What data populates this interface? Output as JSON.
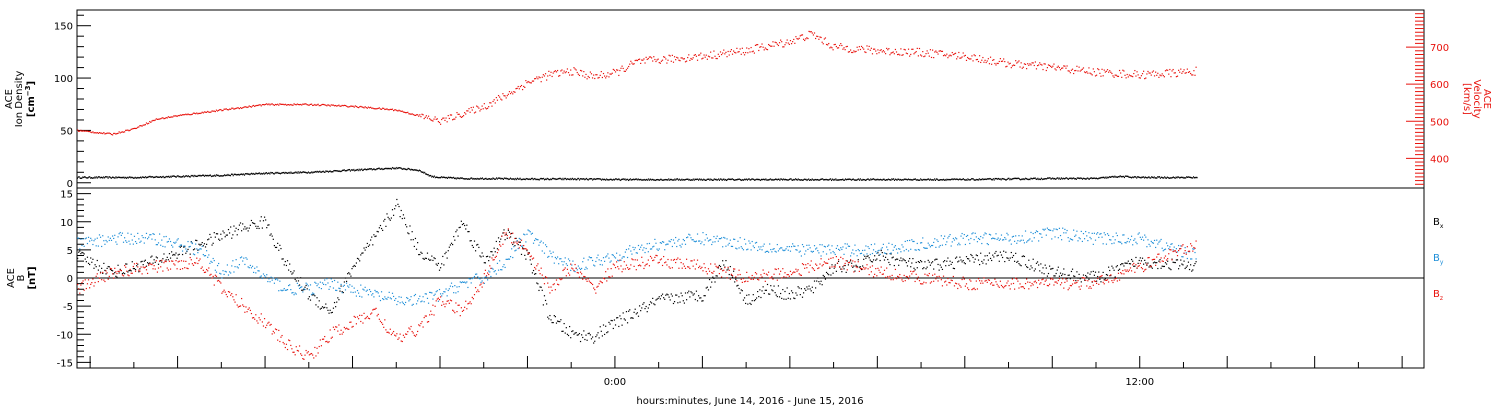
{
  "chart_data": [
    {
      "type": "scatter",
      "panel": "top",
      "ylabel_lines": [
        "ACE",
        "Ion Density"
      ],
      "yunit_left": "[cm",
      "yunit_left_sup": "−3",
      "yunit_left_close": "]",
      "y2label_lines": [
        "ACE",
        "Velocity"
      ],
      "y2unit": "[km/s]",
      "ylim": [
        -5,
        165
      ],
      "yticks": [
        0,
        50,
        100,
        150
      ],
      "y2lim": [
        320,
        800
      ],
      "y2ticks": [
        400,
        500,
        600,
        700
      ],
      "y2ticklabels": [
        "400",
        "500",
        "600",
        "700"
      ],
      "x_hours_range": [
        -12.3,
        18.5
      ],
      "series": [
        {
          "color": "#000000",
          "axis": "left",
          "hours": [
            -12.3,
            -11,
            -10,
            -9,
            -8,
            -7,
            -6,
            -5,
            -4.5,
            -4.2,
            -4,
            -3.5,
            -3,
            -2,
            -1,
            0,
            1,
            2,
            3,
            4,
            5,
            6,
            7,
            8,
            9,
            10,
            11,
            11.5,
            12,
            13.3
          ],
          "values": [
            5,
            5,
            6,
            7,
            9,
            10,
            12,
            14,
            12,
            6,
            5,
            4,
            4,
            3.5,
            3.5,
            3,
            3,
            3,
            3,
            3,
            3,
            3,
            3,
            3,
            3.5,
            4,
            4,
            6,
            5,
            5
          ]
        },
        {
          "color": "#e8120c",
          "axis": "right",
          "hours": [
            -12.3,
            -11.5,
            -11,
            -10.5,
            -10,
            -9,
            -8,
            -7,
            -6,
            -5,
            -4,
            -3.5,
            -3,
            -2.5,
            -2,
            -1.5,
            -1,
            -0.5,
            0,
            0.5,
            1,
            2,
            3,
            4,
            4.5,
            5,
            6,
            7,
            8,
            9,
            10,
            11,
            12,
            12.8,
            13.3
          ],
          "values": [
            475,
            465,
            480,
            505,
            515,
            530,
            545,
            545,
            540,
            530,
            500,
            520,
            540,
            570,
            605,
            625,
            635,
            620,
            630,
            660,
            665,
            675,
            690,
            715,
            735,
            700,
            690,
            685,
            675,
            655,
            645,
            632,
            625,
            630,
            635
          ]
        }
      ]
    },
    {
      "type": "scatter",
      "panel": "bottom",
      "ylabel_lines": [
        "ACE",
        "B"
      ],
      "yunit": "[nT]",
      "ylim": [
        -16,
        16
      ],
      "yticks": [
        -15,
        -10,
        -5,
        0,
        5,
        10,
        15
      ],
      "x_hours_range": [
        -12.3,
        18.5
      ],
      "xtick_labels": [
        "0:00",
        "12:00"
      ],
      "xlabel": "hours:minutes, June 14, 2016 - June 15, 2016",
      "series": [
        {
          "name": "B",
          "sub": "x",
          "color": "#000000",
          "hours": [
            -12.3,
            -11.5,
            -10.5,
            -9.5,
            -8.5,
            -8,
            -7.5,
            -7,
            -6.5,
            -6,
            -5.5,
            -5,
            -4.5,
            -4,
            -3.5,
            -3,
            -2.5,
            -2,
            -1.5,
            -1,
            -0.5,
            0,
            1,
            2,
            2.5,
            3,
            3.5,
            4,
            4.5,
            5,
            5.5,
            6,
            7,
            8,
            9,
            10,
            11,
            12,
            13.3
          ],
          "values": [
            4,
            1,
            3,
            6,
            9,
            10,
            2,
            -3,
            -6,
            2,
            7,
            13,
            5,
            2,
            10,
            3,
            8,
            4,
            -7,
            -10,
            -10.5,
            -8,
            -4,
            -3,
            3,
            -4,
            -2,
            -3,
            -2,
            2,
            2,
            4,
            2,
            3,
            4,
            1,
            0,
            3,
            2
          ]
        },
        {
          "name": "B",
          "sub": "y",
          "color": "#1f8fd8",
          "hours": [
            -12.3,
            -11.5,
            -10.5,
            -9.5,
            -9,
            -8.5,
            -8,
            -7.5,
            -7,
            -6.5,
            -6,
            -5.5,
            -5,
            -4.5,
            -4,
            -3.5,
            -3,
            -2.5,
            -2,
            -1.5,
            -1,
            -0.5,
            0,
            1,
            2,
            3,
            4,
            5,
            6,
            7,
            8,
            9,
            10,
            11,
            12,
            13.3
          ],
          "values": [
            6,
            7,
            7,
            5,
            1,
            3,
            0,
            -2,
            -2,
            -1,
            -2,
            -3,
            -4,
            -4,
            -3,
            -1,
            0,
            3,
            8,
            4,
            2,
            3,
            4,
            6,
            7,
            6,
            5,
            5,
            5,
            6,
            7,
            7,
            8,
            7,
            7,
            4
          ]
        },
        {
          "name": "B",
          "sub": "z",
          "color": "#e8120c",
          "hours": [
            -12.3,
            -11.5,
            -10.5,
            -9.5,
            -9,
            -8.5,
            -8,
            -7.5,
            -7,
            -6.5,
            -6,
            -5.5,
            -5,
            -4.5,
            -4,
            -3.5,
            -3,
            -2.5,
            -2,
            -1.5,
            -1,
            -0.5,
            0,
            1,
            2,
            3,
            4,
            5,
            6,
            7,
            8,
            9,
            10,
            11,
            12,
            13.3
          ],
          "values": [
            -2,
            1,
            2,
            3,
            -2,
            -5,
            -8,
            -12,
            -14,
            -10,
            -8,
            -6,
            -11,
            -9,
            -4,
            -6,
            0,
            8,
            5,
            -2,
            2,
            -2,
            2,
            3,
            2,
            0,
            1,
            3,
            1,
            0,
            -1,
            -1,
            -1,
            -1,
            2,
            6
          ]
        }
      ]
    }
  ]
}
